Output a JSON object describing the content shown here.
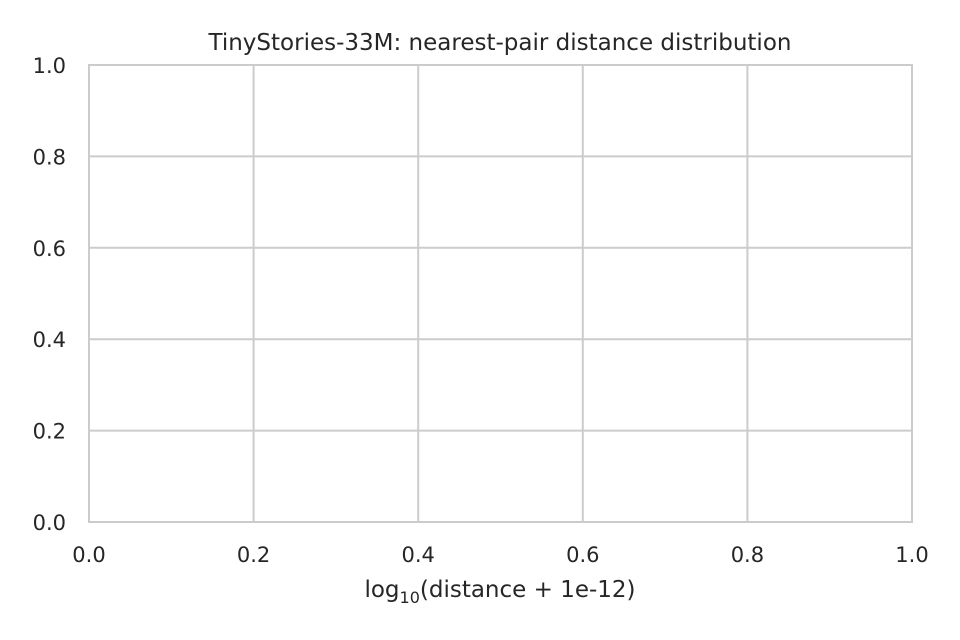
{
  "chart_data": {
    "type": "histogram",
    "title": "TinyStories-33M: nearest-pair distance distribution",
    "xlabel": {
      "prefix": "log",
      "subscript": "10",
      "suffix": "(distance + 1e-12)"
    },
    "ylabel": "",
    "xlim": [
      0.0,
      1.0
    ],
    "ylim": [
      0.0,
      1.0
    ],
    "xticks": [
      "0.0",
      "0.2",
      "0.4",
      "0.6",
      "0.8",
      "1.0"
    ],
    "yticks": [
      "0.0",
      "0.2",
      "0.4",
      "0.6",
      "0.8",
      "1.0"
    ],
    "series": [],
    "grid": true,
    "empty": true
  },
  "colors": {
    "grid": "#cccccc",
    "spine": "#cccccc",
    "text": "#262626",
    "background": "#ffffff"
  }
}
